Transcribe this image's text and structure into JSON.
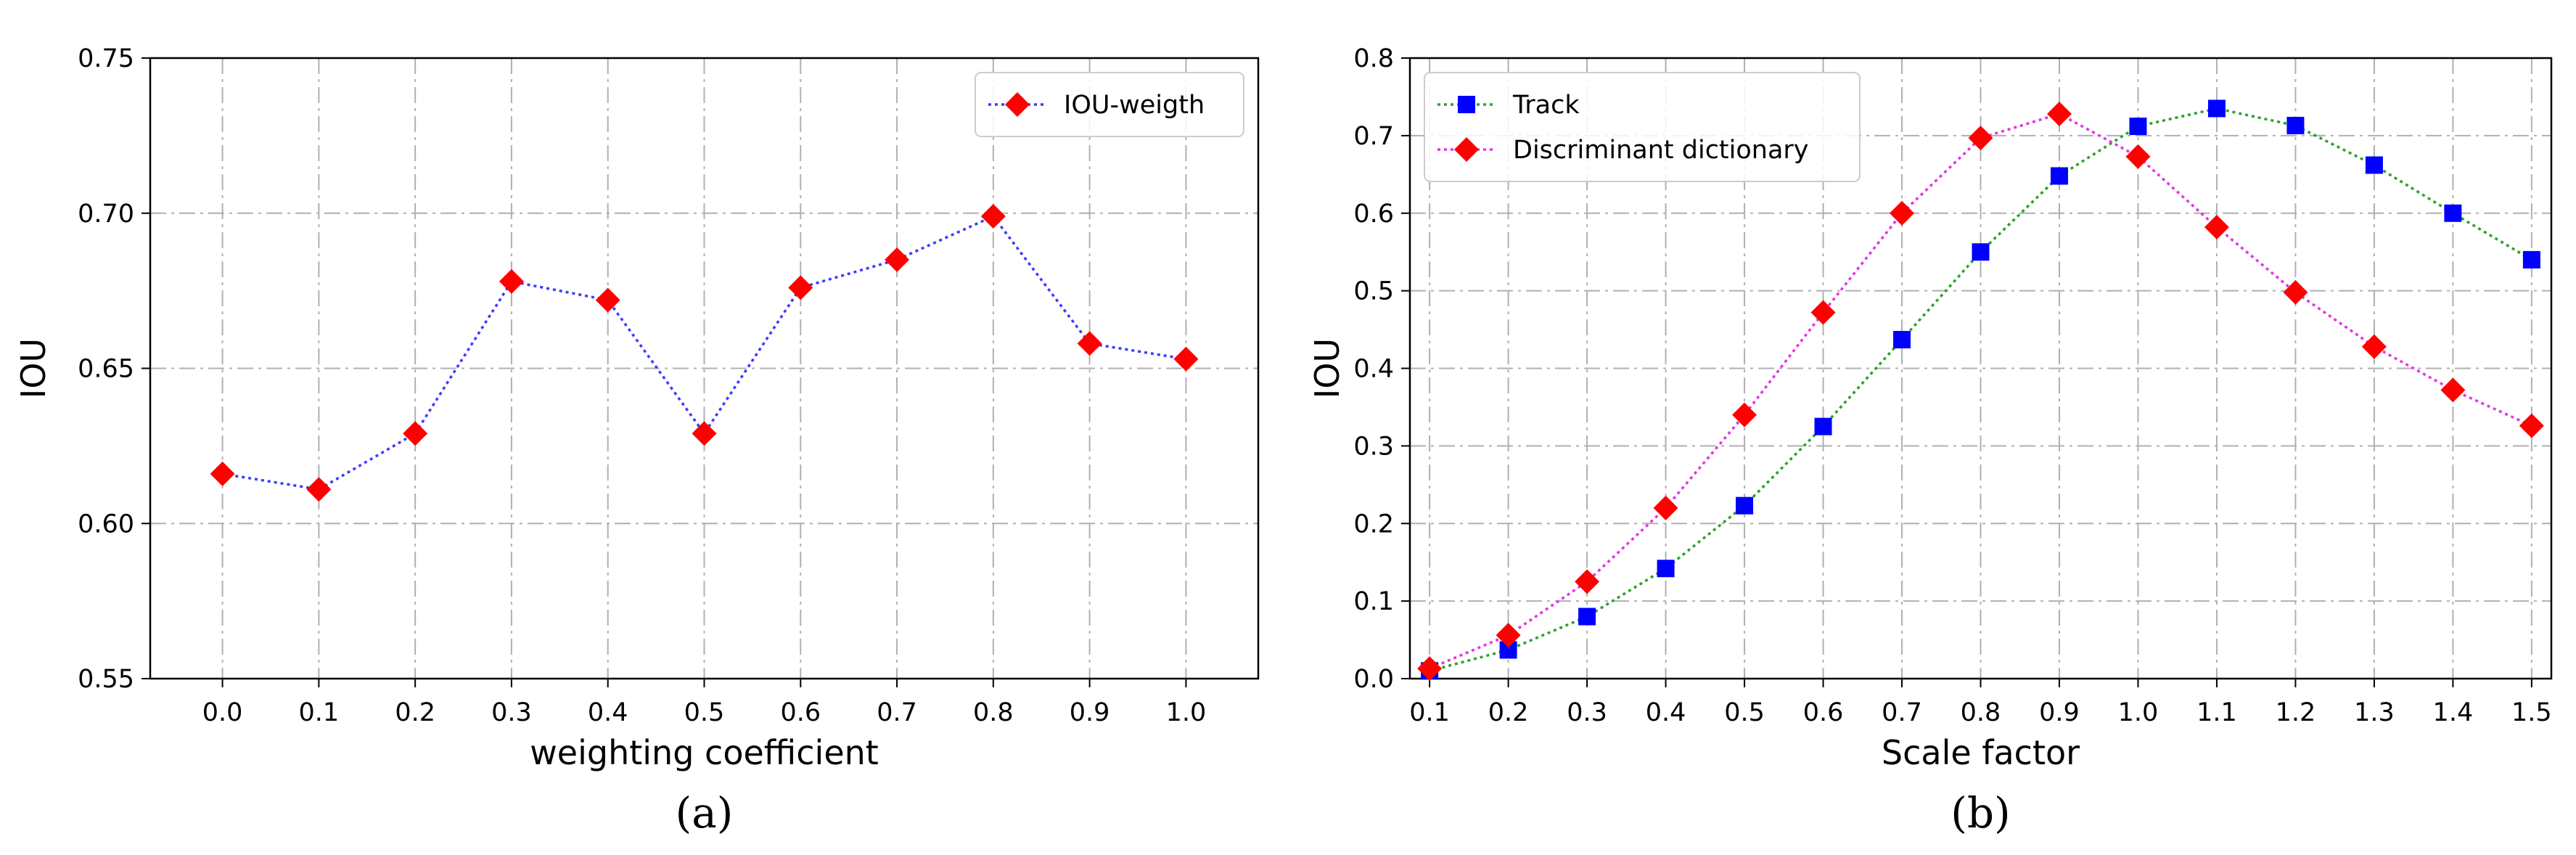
{
  "chart_data": [
    {
      "type": "line",
      "caption": "(a)",
      "xlabel": "weighting coefficient",
      "ylabel": "IOU",
      "xlim": [
        -0.075,
        1.075
      ],
      "ylim": [
        0.55,
        0.75
      ],
      "x_ticks": [
        "0.0",
        "0.1",
        "0.2",
        "0.3",
        "0.4",
        "0.5",
        "0.6",
        "0.7",
        "0.8",
        "0.9",
        "1.0"
      ],
      "y_ticks": [
        "0.55",
        "0.60",
        "0.65",
        "0.70",
        "0.75"
      ],
      "grid": true,
      "legend_position": "top-right",
      "x": [
        0.0,
        0.1,
        0.2,
        0.3,
        0.4,
        0.5,
        0.6,
        0.7,
        0.8,
        0.9,
        1.0
      ],
      "series": [
        {
          "name": "IOU-weigth",
          "line_color": "#3b3bff",
          "marker_color": "#ff0000",
          "marker": "diamond",
          "values": [
            0.616,
            0.611,
            0.629,
            0.678,
            0.672,
            0.629,
            0.676,
            0.685,
            0.699,
            0.658,
            0.653
          ]
        }
      ]
    },
    {
      "type": "line",
      "caption": "(b)",
      "xlabel": "Scale factor",
      "ylabel": "IOU",
      "xlim": [
        0.075,
        1.525
      ],
      "ylim": [
        0.0,
        0.8
      ],
      "x_ticks": [
        "0.1",
        "0.2",
        "0.3",
        "0.4",
        "0.5",
        "0.6",
        "0.7",
        "0.8",
        "0.9",
        "1.0",
        "1.1",
        "1.2",
        "1.3",
        "1.4",
        "1.5"
      ],
      "y_ticks": [
        "0.0",
        "0.1",
        "0.2",
        "0.3",
        "0.4",
        "0.5",
        "0.6",
        "0.7",
        "0.8"
      ],
      "grid": true,
      "legend_position": "top-left",
      "x": [
        0.1,
        0.2,
        0.3,
        0.4,
        0.5,
        0.6,
        0.7,
        0.8,
        0.9,
        1.0,
        1.1,
        1.2,
        1.3,
        1.4,
        1.5
      ],
      "series": [
        {
          "name": "Track",
          "line_color": "#2ca02c",
          "marker_color": "#0000ff",
          "marker": "square",
          "values": [
            0.01,
            0.037,
            0.08,
            0.142,
            0.223,
            0.325,
            0.437,
            0.55,
            0.648,
            0.712,
            0.735,
            0.713,
            0.662,
            0.6,
            0.54
          ]
        },
        {
          "name": "Discriminant dictionary",
          "line_color": "#e632e6",
          "marker_color": "#ff0000",
          "marker": "diamond",
          "values": [
            0.013,
            0.056,
            0.125,
            0.22,
            0.34,
            0.472,
            0.6,
            0.697,
            0.728,
            0.673,
            0.582,
            0.498,
            0.428,
            0.372,
            0.326
          ]
        }
      ]
    }
  ]
}
